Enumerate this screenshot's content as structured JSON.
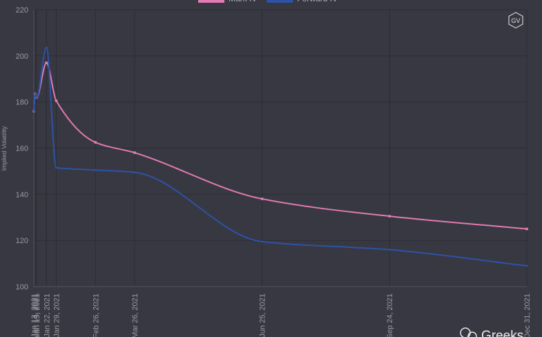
{
  "chart_data": {
    "type": "line",
    "y_label": "Implied Volatility",
    "x": [
      "Jan 13, 2021",
      "Jan 14, 2021",
      "Jan 15, 2021",
      "Jan 22, 2021",
      "Jan 29, 2021",
      "Feb 26, 2021",
      "Mar 26, 2021",
      "Jun 25, 2021",
      "Sep 24, 2021",
      "Dec 31, 2021"
    ],
    "series": [
      {
        "name": "Mark IV",
        "color": "#e27bb1",
        "values": [
          176,
          183.5,
          182,
          197,
          180.5,
          162.5,
          158,
          138,
          130.5,
          125
        ]
      },
      {
        "name": "Forward IV",
        "color": "#2c53a6",
        "values": [
          176,
          183.5,
          182,
          203.5,
          151.5,
          150.5,
          149.5,
          119.5,
          116,
          109
        ]
      }
    ],
    "ylim": [
      100,
      220
    ],
    "yticks": [
      100,
      120,
      140,
      160,
      180,
      200,
      220
    ],
    "grid": true,
    "legend": "top",
    "logo": "GV",
    "watermark": "Greeks"
  }
}
